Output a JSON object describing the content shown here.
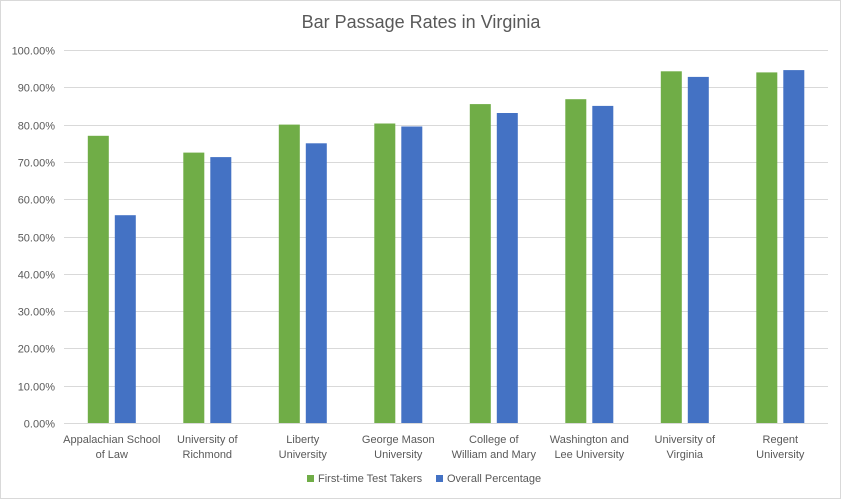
{
  "chart_data": {
    "type": "bar",
    "title": "Bar Passage Rates in Virginia",
    "xlabel": "",
    "ylabel": "",
    "ylim": [
      0,
      100
    ],
    "ytick_step": 10,
    "ytick_format": "percent_2dp",
    "grid": true,
    "legend_position": "bottom",
    "categories": [
      "Appalachian School of Law",
      "University of Richmond",
      "Liberty University",
      "George Mason University",
      "College of William and Mary",
      "Washington and Lee University",
      "University of Virginia",
      "Regent University"
    ],
    "category_label_lines": [
      [
        "Appalachian School",
        "of Law"
      ],
      [
        "University of",
        "Richmond"
      ],
      [
        "Liberty",
        "University"
      ],
      [
        "George Mason",
        "University"
      ],
      [
        "College of",
        "William and Mary"
      ],
      [
        "Washington and",
        "Lee University"
      ],
      [
        "University of",
        "Virginia"
      ],
      [
        "Regent",
        "University"
      ]
    ],
    "series": [
      {
        "name": "First-time Test Takers",
        "color": "#70ad47",
        "values": [
          77.0,
          72.5,
          80.0,
          80.3,
          85.5,
          86.8,
          94.3,
          94.0
        ]
      },
      {
        "name": "Overall Percentage",
        "color": "#4472c4",
        "values": [
          55.7,
          71.3,
          75.0,
          79.5,
          83.1,
          85.0,
          92.8,
          94.6
        ]
      }
    ]
  }
}
